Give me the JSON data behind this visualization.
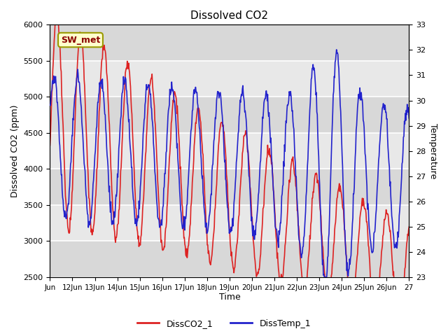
{
  "title": "Dissolved CO2",
  "ylabel_left": "Dissolved CO2 (ppm)",
  "ylabel_right": "Temperature",
  "xlabel": "Time",
  "ylim_left": [
    2500,
    6000
  ],
  "ylim_right": [
    23.0,
    33.0
  ],
  "legend_label_co2": "DissCO2_1",
  "legend_label_temp": "DissTemp_1",
  "annotation_text": "SW_met",
  "color_co2": "#dd2222",
  "color_temp": "#2222cc",
  "background_color": "#e8e8e8",
  "grid_color": "white",
  "x_tick_labels": [
    "Jun",
    "12Jun",
    "13Jun",
    "14Jun",
    "15Jun",
    "16Jun",
    "17Jun",
    "18Jun",
    "19Jun",
    "20Jun",
    "21Jun",
    "22Jun",
    "23Jun",
    "24Jun",
    "25Jun",
    "26Jun",
    "27"
  ],
  "band_colors": [
    "#d8d8d8",
    "#e8e8e8"
  ],
  "linewidth": 1.2
}
